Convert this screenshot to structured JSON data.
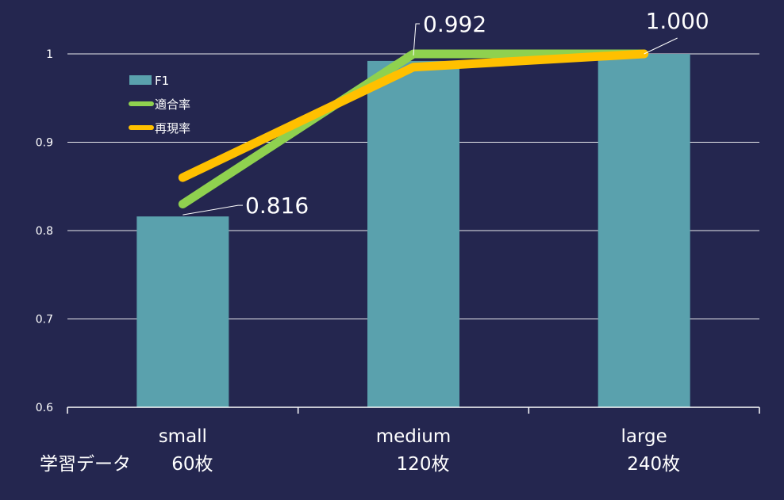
{
  "chart_data": {
    "type": "bar",
    "categories": [
      "small",
      "medium",
      "large"
    ],
    "category_sublabels": [
      "60枚",
      "120枚",
      "240枚"
    ],
    "axis_row_label": "学習データ",
    "title": "",
    "xlabel": "",
    "ylabel": "",
    "ylim": [
      0.6,
      1.0
    ],
    "yticks": [
      0.6,
      0.7,
      0.8,
      0.9,
      1.0
    ],
    "ytick_labels": [
      "0.6",
      "0.7",
      "0.8",
      "0.9",
      "1"
    ],
    "grid": true,
    "legend_position": "top-left",
    "series": [
      {
        "name": "F1",
        "kind": "bar",
        "color": "#5aa1ad",
        "values": [
          0.816,
          0.992,
          1.0
        ]
      },
      {
        "name": "適合率",
        "kind": "line",
        "color": "#8fd14f",
        "values": [
          0.83,
          1.0,
          1.0
        ]
      },
      {
        "name": "再現率",
        "kind": "line",
        "color": "#ffc000",
        "values": [
          0.86,
          0.985,
          1.0
        ]
      }
    ],
    "data_labels": [
      "0.816",
      "0.992",
      "1.000"
    ]
  }
}
